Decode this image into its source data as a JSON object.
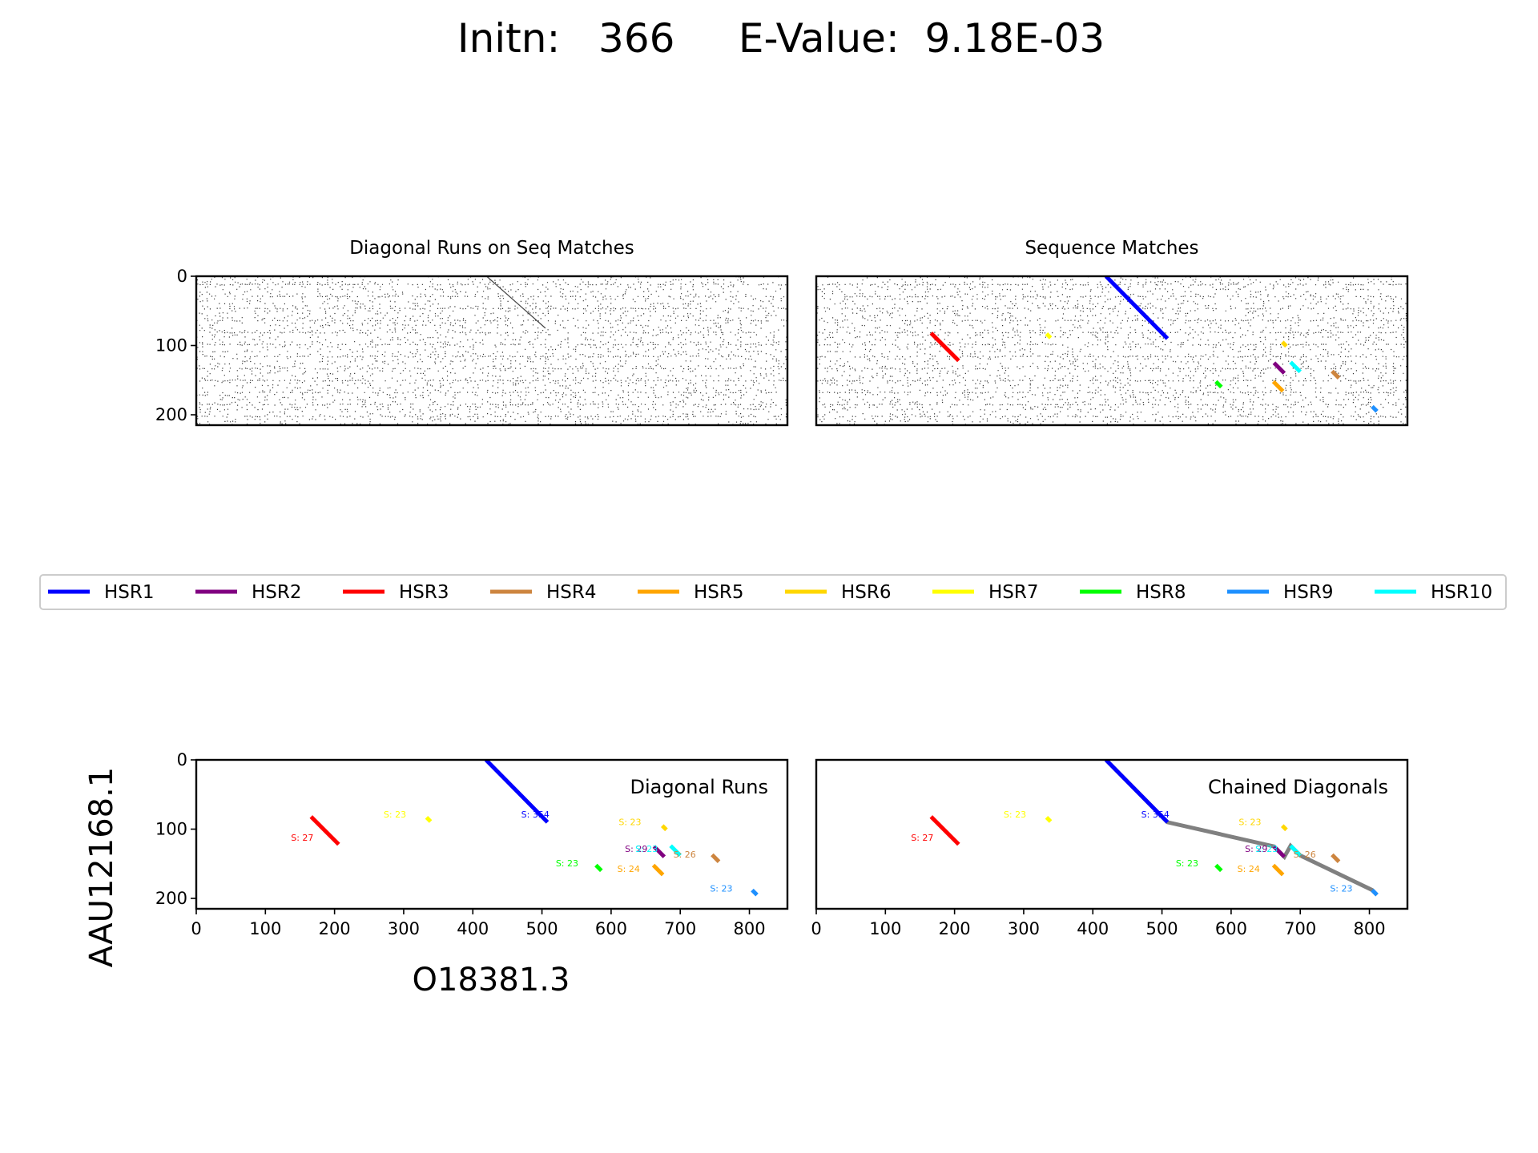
{
  "suptitle": "Initn:   366     E-Value:  9.18E-03",
  "x_sequence_label": "O18381.3",
  "y_sequence_label": "AAU12168.1",
  "colors": {
    "HSR1": "#0000ff",
    "HSR2": "#800080",
    "HSR3": "#ff0000",
    "HSR4": "#cd853f",
    "HSR5": "#ffa500",
    "HSR6": "#ffd700",
    "HSR7": "#ffff00",
    "HSR8": "#00ff00",
    "HSR9": "#1e90ff",
    "HSR10": "#00ffff",
    "chain": "#808080",
    "frame": "#000000"
  },
  "legend": [
    "HSR1",
    "HSR2",
    "HSR3",
    "HSR4",
    "HSR5",
    "HSR6",
    "HSR7",
    "HSR8",
    "HSR9",
    "HSR10"
  ],
  "chart_data": [
    {
      "id": "diag-seq",
      "type": "heatmap",
      "title": "Diagonal Runs on Seq Matches",
      "xlim": [
        0,
        855
      ],
      "ylim": [
        215,
        0
      ],
      "yticks": [
        0,
        100,
        200
      ],
      "xticks": [],
      "background": "dot-matrix of sequence matches",
      "overlay": [
        {
          "name": "faint diagonal",
          "x": [
            420,
            505
          ],
          "y": [
            0,
            75
          ]
        }
      ]
    },
    {
      "id": "seq-matches",
      "type": "heatmap",
      "title": "Sequence Matches",
      "xlim": [
        0,
        855
      ],
      "ylim": [
        215,
        0
      ],
      "yticks": [],
      "xticks": [],
      "background": "dot-matrix of sequence matches",
      "series": [
        {
          "name": "HSR1",
          "x": [
            419,
            508
          ],
          "y": [
            0,
            90
          ]
        },
        {
          "name": "HSR2",
          "x": [
            662,
            677
          ],
          "y": [
            125,
            140
          ]
        },
        {
          "name": "HSR3",
          "x": [
            166,
            206
          ],
          "y": [
            82,
            122
          ]
        },
        {
          "name": "HSR4",
          "x": [
            746,
            756
          ],
          "y": [
            137,
            147
          ]
        },
        {
          "name": "HSR5",
          "x": [
            661,
            675
          ],
          "y": [
            152,
            166
          ]
        },
        {
          "name": "HSR6",
          "x": [
            674,
            680
          ],
          "y": [
            95,
            101
          ]
        },
        {
          "name": "HSR7",
          "x": [
            333,
            339
          ],
          "y": [
            83,
            89
          ]
        },
        {
          "name": "HSR8",
          "x": [
            578,
            586
          ],
          "y": [
            152,
            160
          ]
        },
        {
          "name": "HSR9",
          "x": [
            804,
            811
          ],
          "y": [
            188,
            195
          ]
        },
        {
          "name": "HSR10",
          "x": [
            686,
            700
          ],
          "y": [
            124,
            138
          ]
        }
      ]
    },
    {
      "id": "diag-runs",
      "type": "line",
      "title": "Diagonal Runs",
      "xlim": [
        0,
        855
      ],
      "ylim": [
        215,
        0
      ],
      "xticks": [
        0,
        100,
        200,
        300,
        400,
        500,
        600,
        700,
        800
      ],
      "yticks": [
        0,
        100,
        200
      ],
      "series": [
        {
          "name": "HSR1",
          "x": [
            419,
            508
          ],
          "y": [
            0,
            90
          ],
          "label": "S: 354",
          "lx": 470,
          "ly": 83
        },
        {
          "name": "HSR2",
          "x": [
            662,
            677
          ],
          "y": [
            125,
            140
          ],
          "label": "S: 29",
          "lx": 620,
          "ly": 133
        },
        {
          "name": "HSR3",
          "x": [
            166,
            206
          ],
          "y": [
            82,
            122
          ],
          "label": "S: 27",
          "lx": 137,
          "ly": 117
        },
        {
          "name": "HSR4",
          "x": [
            746,
            756
          ],
          "y": [
            137,
            147
          ],
          "label": "S: 26",
          "lx": 690,
          "ly": 141
        },
        {
          "name": "HSR5",
          "x": [
            661,
            675
          ],
          "y": [
            152,
            166
          ],
          "label": "S: 24",
          "lx": 609,
          "ly": 162
        },
        {
          "name": "HSR6",
          "x": [
            674,
            680
          ],
          "y": [
            95,
            101
          ],
          "label": "S: 23",
          "lx": 611,
          "ly": 94
        },
        {
          "name": "HSR7",
          "x": [
            333,
            339
          ],
          "y": [
            83,
            89
          ],
          "label": "S: 23",
          "lx": 271,
          "ly": 83
        },
        {
          "name": "HSR8",
          "x": [
            578,
            586
          ],
          "y": [
            152,
            160
          ],
          "label": "S: 23",
          "lx": 520,
          "ly": 154
        },
        {
          "name": "HSR9",
          "x": [
            804,
            811
          ],
          "y": [
            188,
            195
          ],
          "label": "S: 23",
          "lx": 743,
          "ly": 190
        },
        {
          "name": "HSR10",
          "x": [
            686,
            700
          ],
          "y": [
            124,
            138
          ],
          "label": "S: 23",
          "lx": 635,
          "ly": 133
        }
      ]
    },
    {
      "id": "chained",
      "type": "line",
      "title": "Chained Diagonals",
      "xlim": [
        0,
        855
      ],
      "ylim": [
        215,
        0
      ],
      "xticks": [
        0,
        100,
        200,
        300,
        400,
        500,
        600,
        700,
        800
      ],
      "yticks": [],
      "chain": {
        "x": [
          419,
          508,
          662,
          677,
          686,
          700,
          804,
          811
        ],
        "y": [
          0,
          90,
          125,
          140,
          124,
          138,
          188,
          195
        ]
      },
      "series": [
        {
          "name": "HSR1",
          "x": [
            419,
            508
          ],
          "y": [
            0,
            90
          ],
          "label": "S: 354",
          "lx": 470,
          "ly": 83
        },
        {
          "name": "HSR2",
          "x": [
            662,
            677
          ],
          "y": [
            125,
            140
          ],
          "label": "S: 29",
          "lx": 620,
          "ly": 133
        },
        {
          "name": "HSR3",
          "x": [
            166,
            206
          ],
          "y": [
            82,
            122
          ],
          "label": "S: 27",
          "lx": 137,
          "ly": 117
        },
        {
          "name": "HSR4",
          "x": [
            746,
            756
          ],
          "y": [
            137,
            147
          ],
          "label": "S: 26",
          "lx": 690,
          "ly": 141
        },
        {
          "name": "HSR5",
          "x": [
            661,
            675
          ],
          "y": [
            152,
            166
          ],
          "label": "S: 24",
          "lx": 609,
          "ly": 162
        },
        {
          "name": "HSR6",
          "x": [
            674,
            680
          ],
          "y": [
            95,
            101
          ],
          "label": "S: 23",
          "lx": 611,
          "ly": 94
        },
        {
          "name": "HSR7",
          "x": [
            333,
            339
          ],
          "y": [
            83,
            89
          ],
          "label": "S: 23",
          "lx": 271,
          "ly": 83
        },
        {
          "name": "HSR8",
          "x": [
            578,
            586
          ],
          "y": [
            152,
            160
          ],
          "label": "S: 23",
          "lx": 520,
          "ly": 154
        },
        {
          "name": "HSR9",
          "x": [
            804,
            811
          ],
          "y": [
            188,
            195
          ],
          "label": "S: 23",
          "lx": 743,
          "ly": 190
        },
        {
          "name": "HSR10",
          "x": [
            686,
            700
          ],
          "y": [
            124,
            138
          ],
          "label": "S: 23",
          "lx": 635,
          "ly": 133
        }
      ]
    }
  ]
}
